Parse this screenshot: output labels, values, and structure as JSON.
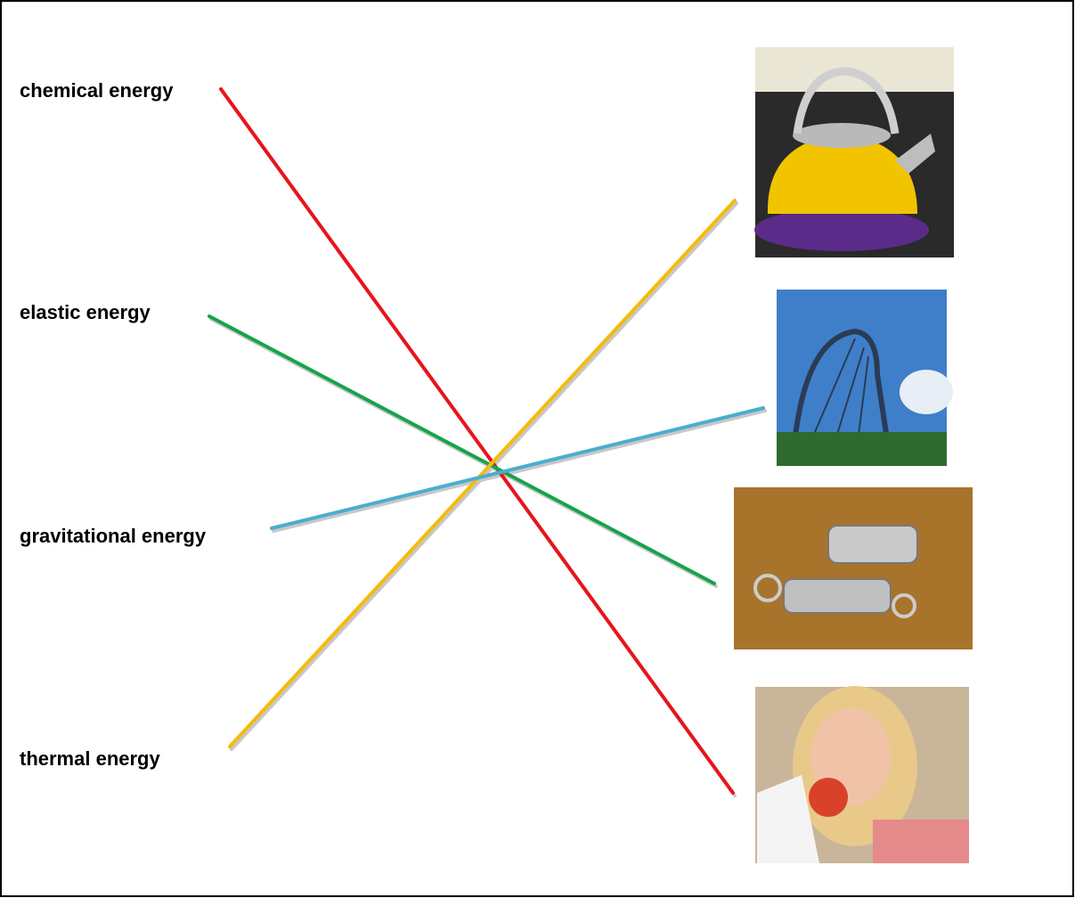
{
  "labels": [
    "chemical energy",
    "elastic energy",
    "gravitational energy",
    "thermal energy"
  ]
}
